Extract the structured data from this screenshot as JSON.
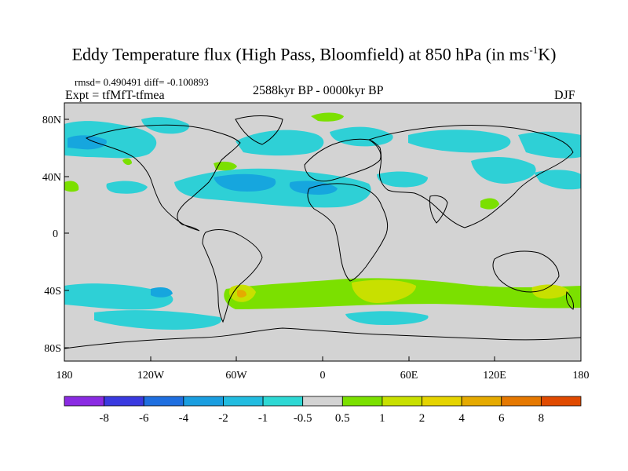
{
  "title": {
    "main": "Eddy Temperature flux (High Pass, Bloomfield) at 850 hPa (in ms",
    "sup": "-1",
    "tail": "K)"
  },
  "stats": "rmsd= 0.490491 diff= -0.100893",
  "experiment": "Expt = tfMfT-tfmea",
  "period": "2588kyr BP - 0000kyr BP",
  "season": "DJF",
  "colors": {
    "land_neutral": "#d3d3d3",
    "blue_dark": "#1f7fe0",
    "blue_mid": "#16a6de",
    "cyan": "#2ed0d6",
    "green": "#7be000",
    "yellow_green": "#c8e000",
    "yellow": "#e5d400"
  },
  "map": {
    "lat_labels": [
      "80N",
      "40N",
      "0",
      "40S",
      "80S"
    ],
    "lon_labels": [
      "180",
      "120W",
      "60W",
      "0",
      "60E",
      "120E",
      "180"
    ]
  },
  "colorbar": {
    "labels": [
      "-8",
      "-6",
      "-4",
      "-2",
      "-1",
      "-0.5",
      "0.5",
      "1",
      "2",
      "4",
      "6",
      "8"
    ],
    "colors": [
      "#8a2be2",
      "#3a3ae0",
      "#1f6fe0",
      "#1a9ee0",
      "#22bce0",
      "#2ed8d4",
      "#d3d3d3",
      "#7be000",
      "#c8e000",
      "#e5d400",
      "#e5aa00",
      "#e57800",
      "#e04a00"
    ]
  }
}
